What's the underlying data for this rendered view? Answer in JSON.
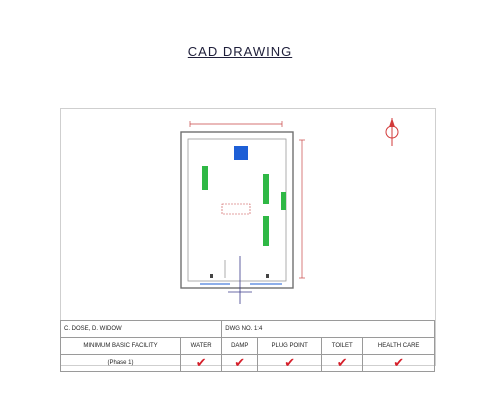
{
  "title": "CAD DRAWING",
  "plan": {
    "room_label": "",
    "colors": {
      "wall": "#707070",
      "fixture": "#2fb845",
      "door_fixture": "#1e5fd6",
      "dimension": "#c74545",
      "compass": "#d23a3a"
    },
    "icons": [
      "north-arrow-icon"
    ]
  },
  "info_table": {
    "owner": "C. DOSE, D. WIDOW",
    "scale": "DWG NO. 1:4",
    "facility_label": "MINIMUM BASIC FACILITY",
    "phase": "(Phase 1)",
    "columns": [
      "WATER",
      "DAMP",
      "PLUG POINT",
      "TOILET",
      "HEALTH CARE"
    ],
    "checks": [
      true,
      true,
      true,
      true,
      true
    ],
    "check_symbol": "✔"
  }
}
